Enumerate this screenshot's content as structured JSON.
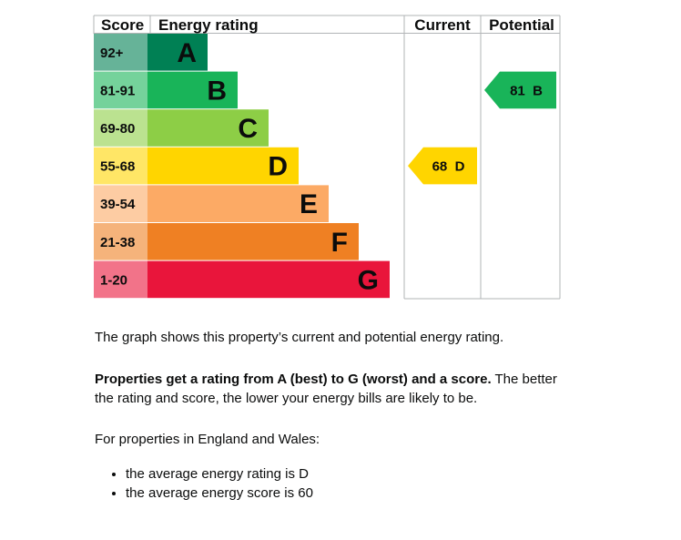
{
  "chart_data": {
    "type": "bar",
    "headers": {
      "score": "Score",
      "rating": "Energy rating",
      "current": "Current",
      "potential": "Potential"
    },
    "bands": [
      {
        "letter": "A",
        "range": "92+",
        "color": "#008054",
        "score_color": "#66b398"
      },
      {
        "letter": "B",
        "range": "81-91",
        "color": "#19b459",
        "score_color": "#75d29b"
      },
      {
        "letter": "C",
        "range": "69-80",
        "color": "#8dce46",
        "score_color": "#bbe290"
      },
      {
        "letter": "D",
        "range": "55-68",
        "color": "#ffd500",
        "score_color": "#ffe666"
      },
      {
        "letter": "E",
        "range": "39-54",
        "color": "#fcaa65",
        "score_color": "#fdcca3"
      },
      {
        "letter": "F",
        "range": "21-38",
        "color": "#ef8023",
        "score_color": "#f5b37b"
      },
      {
        "letter": "G",
        "range": "1-20",
        "color": "#e9153b",
        "score_color": "#f27389"
      }
    ],
    "current": {
      "score": 68,
      "band": "D",
      "label": "68  D",
      "color": "#ffd500"
    },
    "potential": {
      "score": 81,
      "band": "B",
      "label": "81  B",
      "color": "#19b459"
    }
  },
  "text": {
    "intro": "The graph shows this property’s current and potential energy rating.",
    "rating_bold": "Properties get a rating from A (best) to G (worst) and a score.",
    "rating_rest": " The better the rating and score, the lower your energy bills are likely to be.",
    "region": "For properties in England and Wales:",
    "bullets": [
      "the average energy rating is D",
      "the average energy score is 60"
    ]
  }
}
